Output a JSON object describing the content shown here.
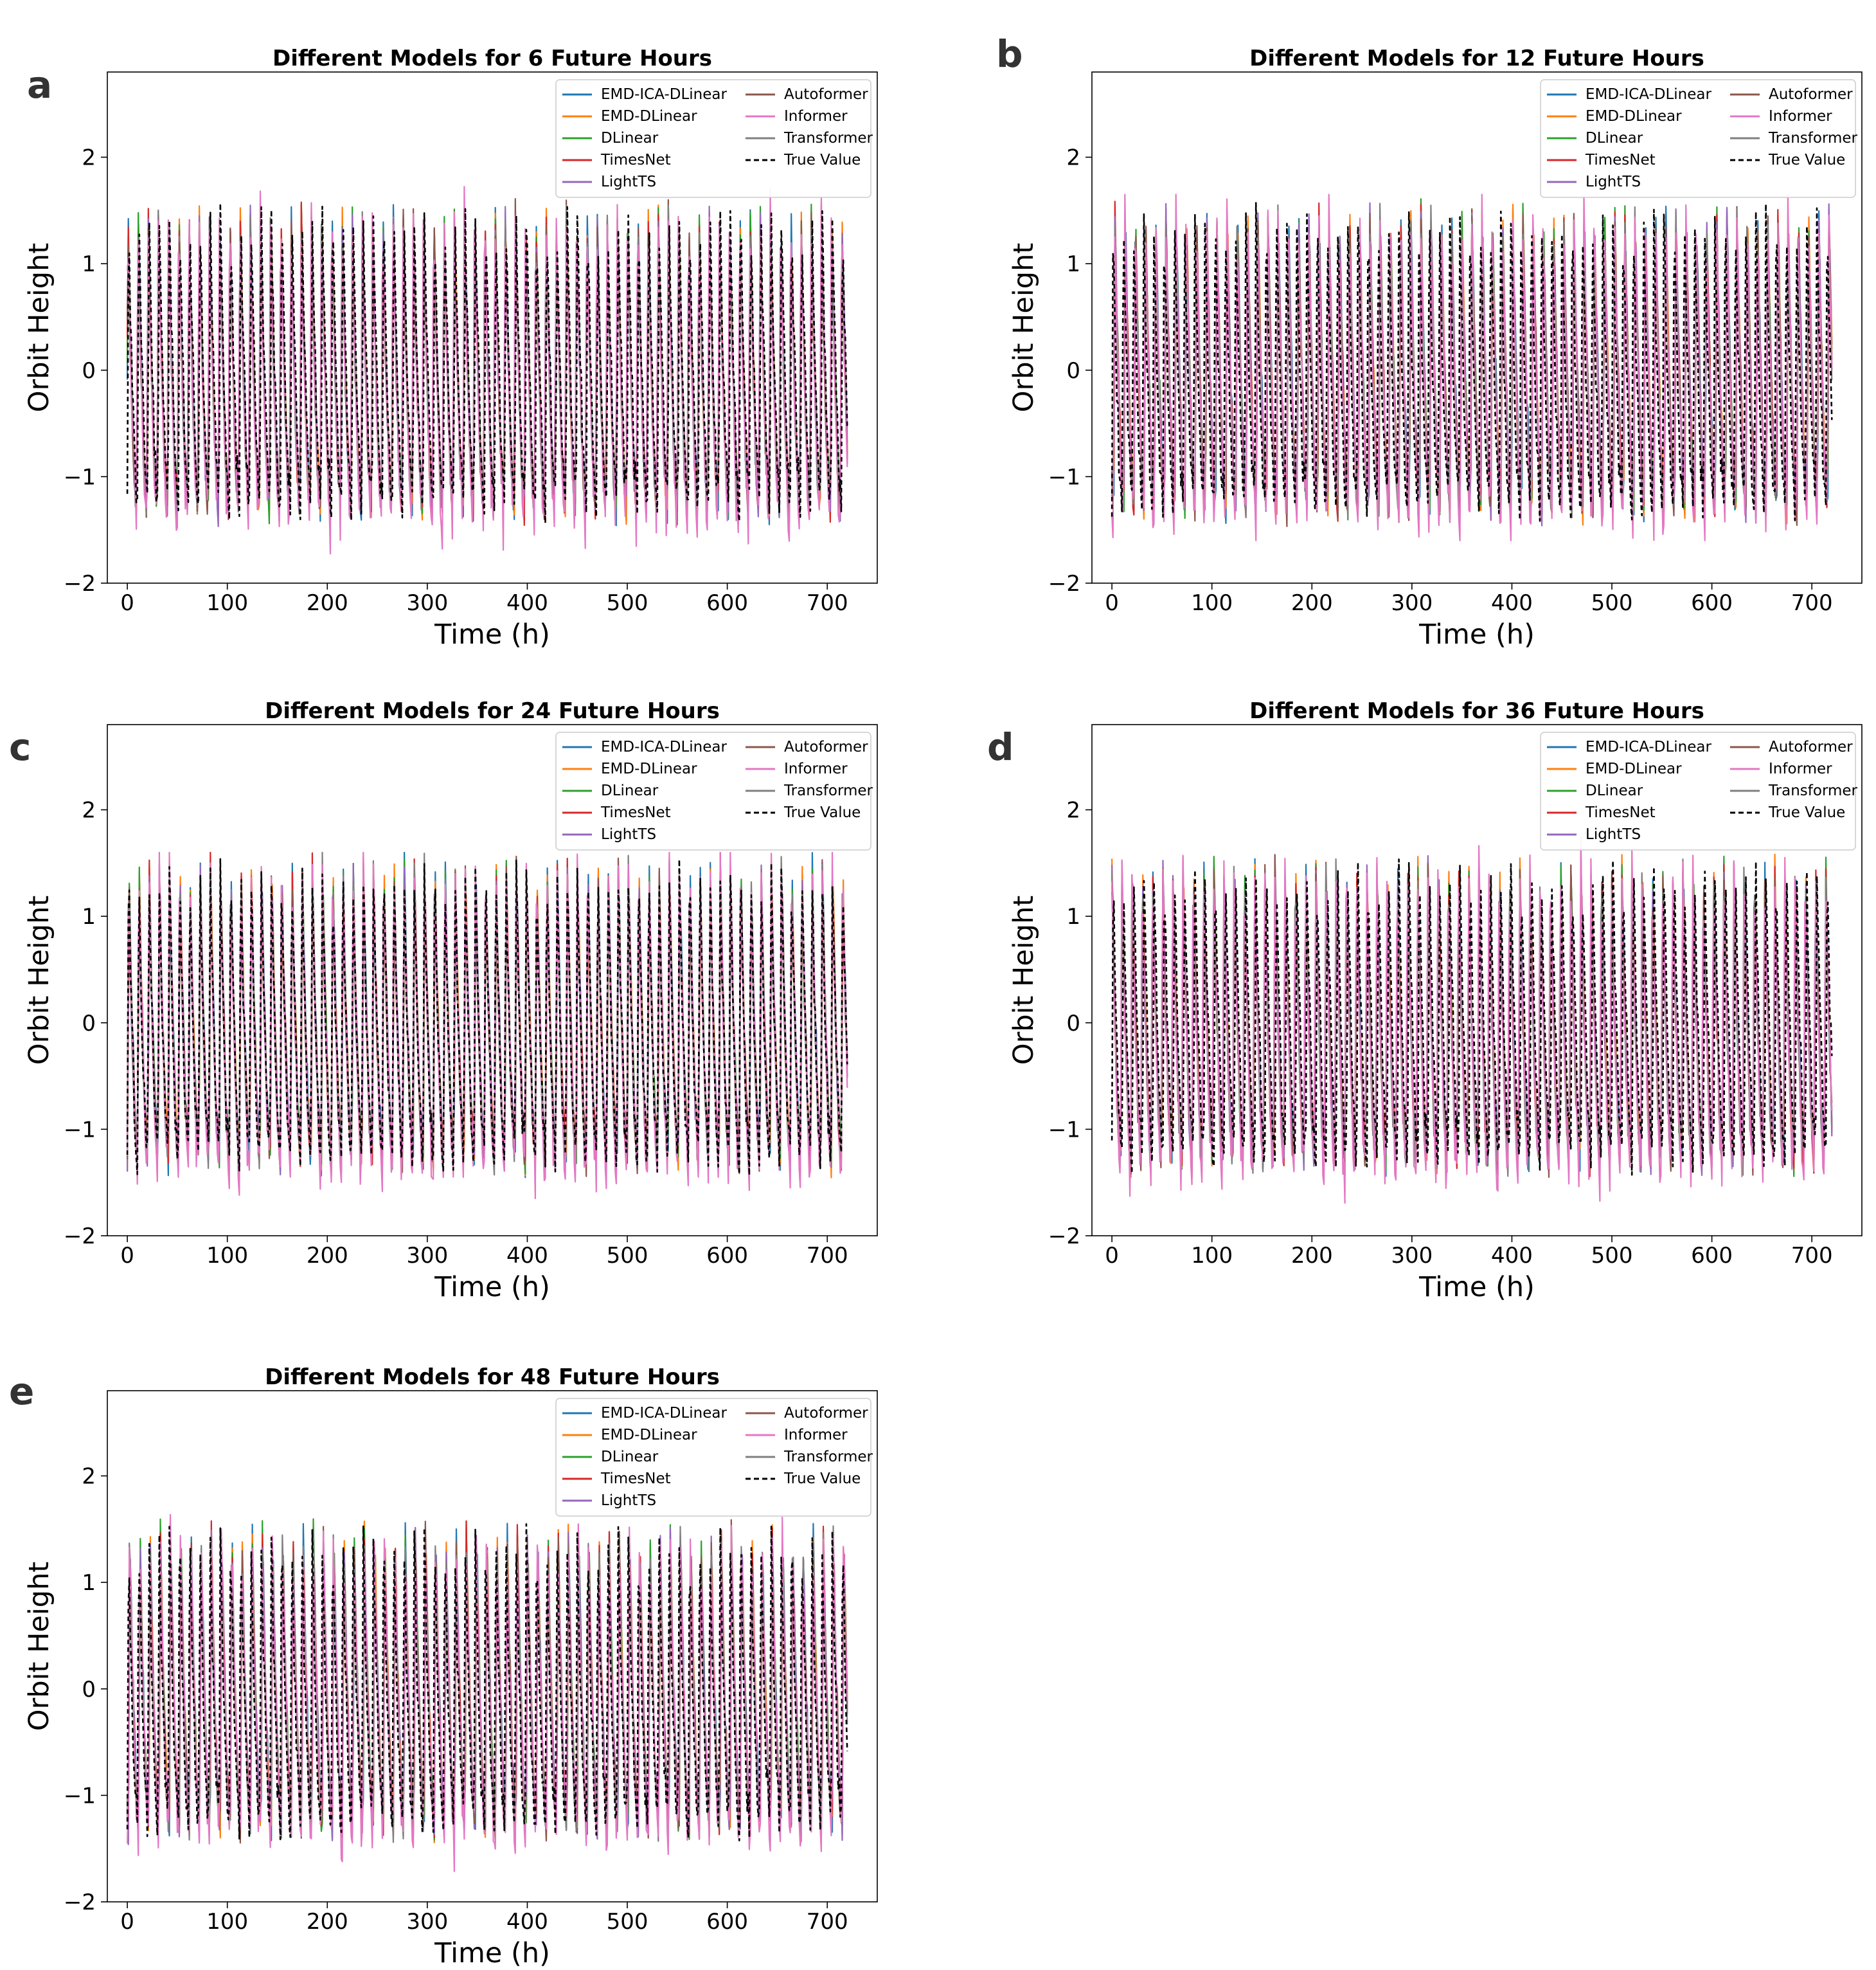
{
  "figure": {
    "legend_entries": [
      {
        "name": "EMD-ICA-DLinear",
        "color": "#1f77b4",
        "dash": "solid"
      },
      {
        "name": "EMD-DLinear",
        "color": "#ff7f0e",
        "dash": "solid"
      },
      {
        "name": "DLinear",
        "color": "#2ca02c",
        "dash": "solid"
      },
      {
        "name": "TimesNet",
        "color": "#d62728",
        "dash": "solid"
      },
      {
        "name": "LightTS",
        "color": "#9467bd",
        "dash": "solid"
      },
      {
        "name": "Autoformer",
        "color": "#8c564b",
        "dash": "solid"
      },
      {
        "name": "Informer",
        "color": "#e377c2",
        "dash": "solid"
      },
      {
        "name": "Transformer",
        "color": "#7f7f7f",
        "dash": "solid"
      },
      {
        "name": "True Value",
        "color": "#000000",
        "dash": "dashed"
      }
    ]
  },
  "chart_data": [
    {
      "panel": "a",
      "type": "line",
      "title": "Different Models for 6 Future Hours",
      "xlabel": "Time (h)",
      "ylabel": "Orbit Height",
      "xlim": [
        -20,
        750
      ],
      "ylim": [
        -2,
        2.8
      ],
      "xticks": [
        0,
        100,
        200,
        300,
        400,
        500,
        600,
        700
      ],
      "yticks": [
        -2,
        -1,
        0,
        1,
        2
      ],
      "grid": false,
      "legend_position": "upper right",
      "x_range": [
        0,
        720
      ],
      "approx_period_h": 10.2,
      "amplitude_range": [
        -1.85,
        1.75
      ],
      "series": [
        "EMD-ICA-DLinear",
        "EMD-DLinear",
        "DLinear",
        "TimesNet",
        "LightTS",
        "Autoformer",
        "Informer",
        "Transformer",
        "True Value"
      ]
    },
    {
      "panel": "b",
      "type": "line",
      "title": "Different Models for 12 Future Hours",
      "xlabel": "Time (h)",
      "ylabel": "Orbit Height",
      "xlim": [
        -20,
        750
      ],
      "ylim": [
        -2,
        2.8
      ],
      "xticks": [
        0,
        100,
        200,
        300,
        400,
        500,
        600,
        700
      ],
      "yticks": [
        -2,
        -1,
        0,
        1,
        2
      ],
      "grid": false,
      "legend_position": "upper right",
      "x_range": [
        0,
        720
      ],
      "approx_period_h": 10.2,
      "amplitude_range": [
        -1.6,
        1.65
      ],
      "series": [
        "EMD-ICA-DLinear",
        "EMD-DLinear",
        "DLinear",
        "TimesNet",
        "LightTS",
        "Autoformer",
        "Informer",
        "Transformer",
        "True Value"
      ]
    },
    {
      "panel": "c",
      "type": "line",
      "title": "Different Models for 24 Future Hours",
      "xlabel": "Time (h)",
      "ylabel": "Orbit Height",
      "xlim": [
        -20,
        750
      ],
      "ylim": [
        -2,
        2.8
      ],
      "xticks": [
        0,
        100,
        200,
        300,
        400,
        500,
        600,
        700
      ],
      "yticks": [
        -2,
        -1,
        0,
        1,
        2
      ],
      "grid": false,
      "legend_position": "upper right",
      "x_range": [
        0,
        720
      ],
      "approx_period_h": 10.2,
      "amplitude_range": [
        -1.65,
        1.6
      ],
      "series": [
        "EMD-ICA-DLinear",
        "EMD-DLinear",
        "DLinear",
        "TimesNet",
        "LightTS",
        "Autoformer",
        "Informer",
        "Transformer",
        "True Value"
      ]
    },
    {
      "panel": "d",
      "type": "line",
      "title": "Different Models for 36 Future Hours",
      "xlabel": "Time (h)",
      "ylabel": "Orbit Height",
      "xlim": [
        -20,
        750
      ],
      "ylim": [
        -2,
        2.8
      ],
      "xticks": [
        0,
        100,
        200,
        300,
        400,
        500,
        600,
        700
      ],
      "yticks": [
        -2,
        -1,
        0,
        1,
        2
      ],
      "grid": false,
      "legend_position": "upper right",
      "x_range": [
        0,
        720
      ],
      "approx_period_h": 10.2,
      "amplitude_range": [
        -1.75,
        1.75
      ],
      "series": [
        "EMD-ICA-DLinear",
        "EMD-DLinear",
        "DLinear",
        "TimesNet",
        "LightTS",
        "Autoformer",
        "Informer",
        "Transformer",
        "True Value"
      ]
    },
    {
      "panel": "e",
      "type": "line",
      "title": "Different Models for 48 Future Hours",
      "xlabel": "Time (h)",
      "ylabel": "Orbit Height",
      "xlim": [
        -20,
        750
      ],
      "ylim": [
        -2,
        2.8
      ],
      "xticks": [
        0,
        100,
        200,
        300,
        400,
        500,
        600,
        700
      ],
      "yticks": [
        -2,
        -1,
        0,
        1,
        2
      ],
      "grid": false,
      "legend_position": "upper right",
      "x_range": [
        0,
        720
      ],
      "approx_period_h": 10.2,
      "amplitude_range": [
        -1.8,
        1.65
      ],
      "series": [
        "EMD-ICA-DLinear",
        "EMD-DLinear",
        "DLinear",
        "TimesNet",
        "LightTS",
        "Autoformer",
        "Informer",
        "Transformer",
        "True Value"
      ]
    }
  ]
}
